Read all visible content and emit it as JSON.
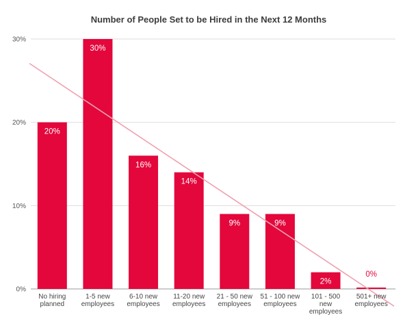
{
  "chart_data": {
    "type": "bar",
    "title": "Number of People Set to be Hired in the Next 12 Months",
    "categories": [
      [
        "No hiring",
        "planned"
      ],
      [
        "1-5 new",
        "employees"
      ],
      [
        "6-10 new",
        "employees"
      ],
      [
        "11-20 new",
        "employees"
      ],
      [
        "21 - 50 new",
        "employees"
      ],
      [
        "51 - 100 new",
        "employees"
      ],
      [
        "101 - 500",
        "new",
        "employees"
      ],
      [
        "501+ new",
        "employees"
      ]
    ],
    "values": [
      20,
      30,
      16,
      14,
      9,
      9,
      2,
      0
    ],
    "data_labels": [
      "20%",
      "30%",
      "16%",
      "14%",
      "9%",
      "9%",
      "2%",
      "0%"
    ],
    "ylim": [
      0,
      30
    ],
    "yticks": [
      0,
      10,
      20,
      30
    ],
    "ytick_labels": [
      "0%",
      "10%",
      "20%",
      "30%"
    ],
    "grid": true,
    "trendline": {
      "type": "linear",
      "color": "#f0a0b0"
    },
    "colors": {
      "bar": "#e3073c",
      "label_inside": "#ffffff",
      "label_outside": "#e3073c",
      "grid": "#dddddd"
    }
  }
}
